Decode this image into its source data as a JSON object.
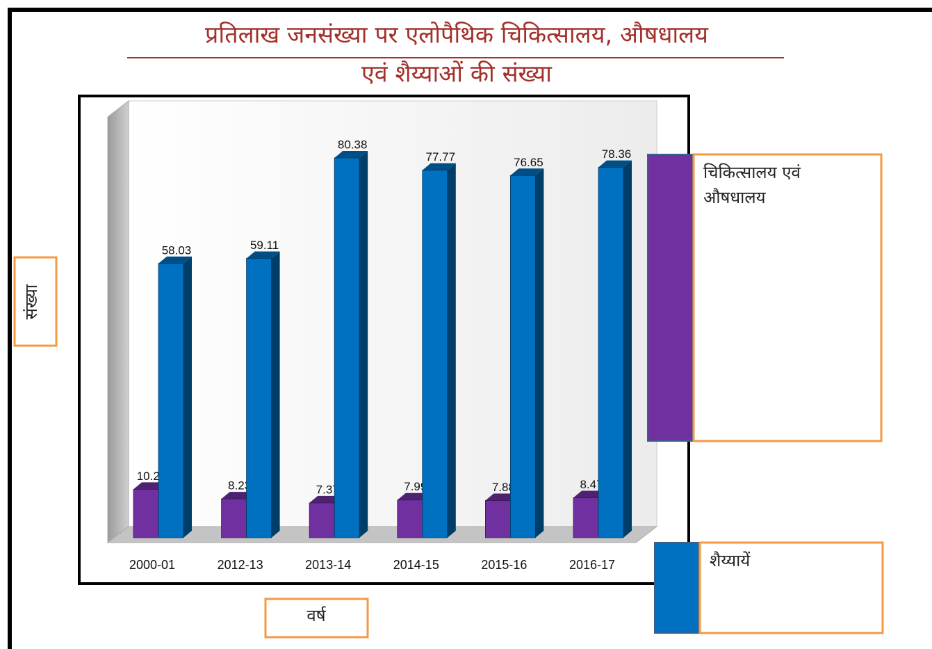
{
  "chart_data": {
    "type": "bar",
    "title": [
      "प्रतिलाख जनसंख्या पर एलोपैथिक चिकित्सालय, औषधालय",
      "एवं शैय्याओं की संख्या"
    ],
    "x_label": "वर्ष",
    "y_label": "संख्या",
    "categories": [
      "2000-01",
      "2012-13",
      "2013-14",
      "2014-15",
      "2015-16",
      "2016-17"
    ],
    "series": [
      {
        "name": "चिकित्सालय एवं औषधालय",
        "color": "#7030a0",
        "values": [
          10.24,
          8.23,
          7.37,
          7.99,
          7.88,
          8.47
        ]
      },
      {
        "name": "शैय्यायें",
        "color": "#0070c0",
        "values": [
          58.03,
          59.11,
          80.38,
          77.77,
          76.65,
          78.36
        ]
      }
    ],
    "ylim": [
      0,
      92
    ],
    "legend": "right"
  }
}
